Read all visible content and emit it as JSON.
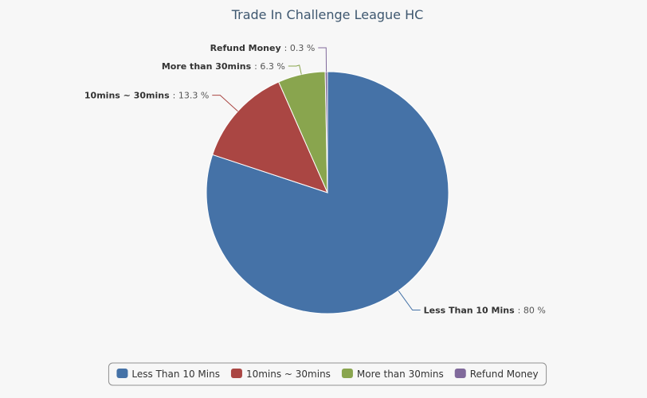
{
  "chart_data": {
    "type": "pie",
    "title": "Trade In Challenge League HC",
    "categories": [
      "Less Than 10 Mins",
      "10mins ~ 30mins",
      "More than 30mins",
      "Refund Money"
    ],
    "values": [
      80,
      13.3,
      6.3,
      0.3
    ],
    "value_labels": [
      ": 80 %",
      ": 13.3 %",
      ": 6.3 %",
      ": 0.3 %"
    ],
    "colors": [
      "#4572a7",
      "#aa4643",
      "#89a54e",
      "#80699b"
    ],
    "legend": "bottom"
  }
}
